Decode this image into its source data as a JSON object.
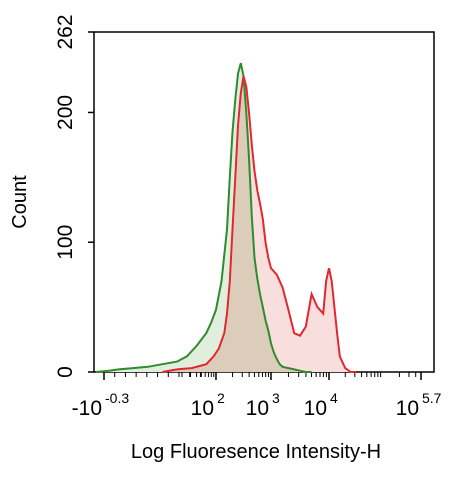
{
  "chart_data": {
    "type": "area",
    "title": "",
    "xlabel": "Log Fluoresence Intensity-H",
    "ylabel": "Count",
    "x_scale": "biexponential",
    "ylim": [
      0,
      262
    ],
    "y_ticks": [
      {
        "value": 0,
        "label": "0"
      },
      {
        "value": 100,
        "label": "100"
      },
      {
        "value": 200,
        "label": "200"
      },
      {
        "value": 262,
        "label": "262"
      }
    ],
    "x_ticks": [
      {
        "value": -0.3,
        "base": "-10",
        "exp": "-0.3"
      },
      {
        "value": 2,
        "base": "10",
        "exp": "2"
      },
      {
        "value": 3,
        "base": "10",
        "exp": "3"
      },
      {
        "value": 4,
        "base": "10",
        "exp": "4"
      },
      {
        "value": 5.7,
        "base": "10",
        "exp": "5.7"
      }
    ],
    "grid": false,
    "legend": "none",
    "colors": {
      "control_line": "#2e8b2e",
      "control_fill": "#e2eedd",
      "sample_line": "#e0282f",
      "sample_fill": "#f9dede",
      "overlap_fill": "#dccdbb"
    },
    "series": [
      {
        "x": [
          -0.35,
          -0.2,
          0,
          0.3,
          0.6,
          0.9,
          1.2,
          1.4,
          1.6,
          1.8,
          1.9,
          2.0,
          2.1,
          2.2,
          2.25,
          2.3,
          2.35,
          2.4,
          2.45,
          2.5,
          2.55,
          2.6,
          2.65,
          2.7,
          2.75,
          2.8,
          2.85,
          2.9,
          2.95,
          3.0,
          3.05,
          3.1,
          3.15,
          3.2,
          3.3,
          3.4,
          3.5,
          3.6,
          3.7
        ],
        "values": [
          0,
          1,
          2,
          3,
          4,
          6,
          8,
          12,
          20,
          30,
          38,
          48,
          70,
          110,
          150,
          185,
          210,
          230,
          238,
          228,
          200,
          165,
          120,
          88,
          72,
          60,
          50,
          40,
          32,
          22,
          15,
          10,
          6,
          4,
          3,
          2,
          1,
          0,
          0
        ]
      },
      {
        "x": [
          0.9,
          1.2,
          1.5,
          1.8,
          1.95,
          2.05,
          2.15,
          2.2,
          2.25,
          2.3,
          2.35,
          2.4,
          2.45,
          2.5,
          2.55,
          2.6,
          2.65,
          2.7,
          2.75,
          2.8,
          2.85,
          2.9,
          2.95,
          3.0,
          3.1,
          3.2,
          3.3,
          3.4,
          3.5,
          3.6,
          3.7,
          3.8,
          3.9,
          3.95,
          4.0,
          4.05,
          4.1,
          4.15,
          4.2,
          4.3,
          4.4,
          4.5
        ],
        "values": [
          0,
          2,
          3,
          6,
          12,
          18,
          30,
          45,
          70,
          110,
          150,
          190,
          215,
          228,
          220,
          200,
          175,
          155,
          140,
          130,
          118,
          100,
          88,
          80,
          75,
          65,
          48,
          30,
          28,
          35,
          60,
          50,
          45,
          70,
          80,
          70,
          50,
          30,
          12,
          3,
          0,
          0
        ]
      }
    ]
  }
}
